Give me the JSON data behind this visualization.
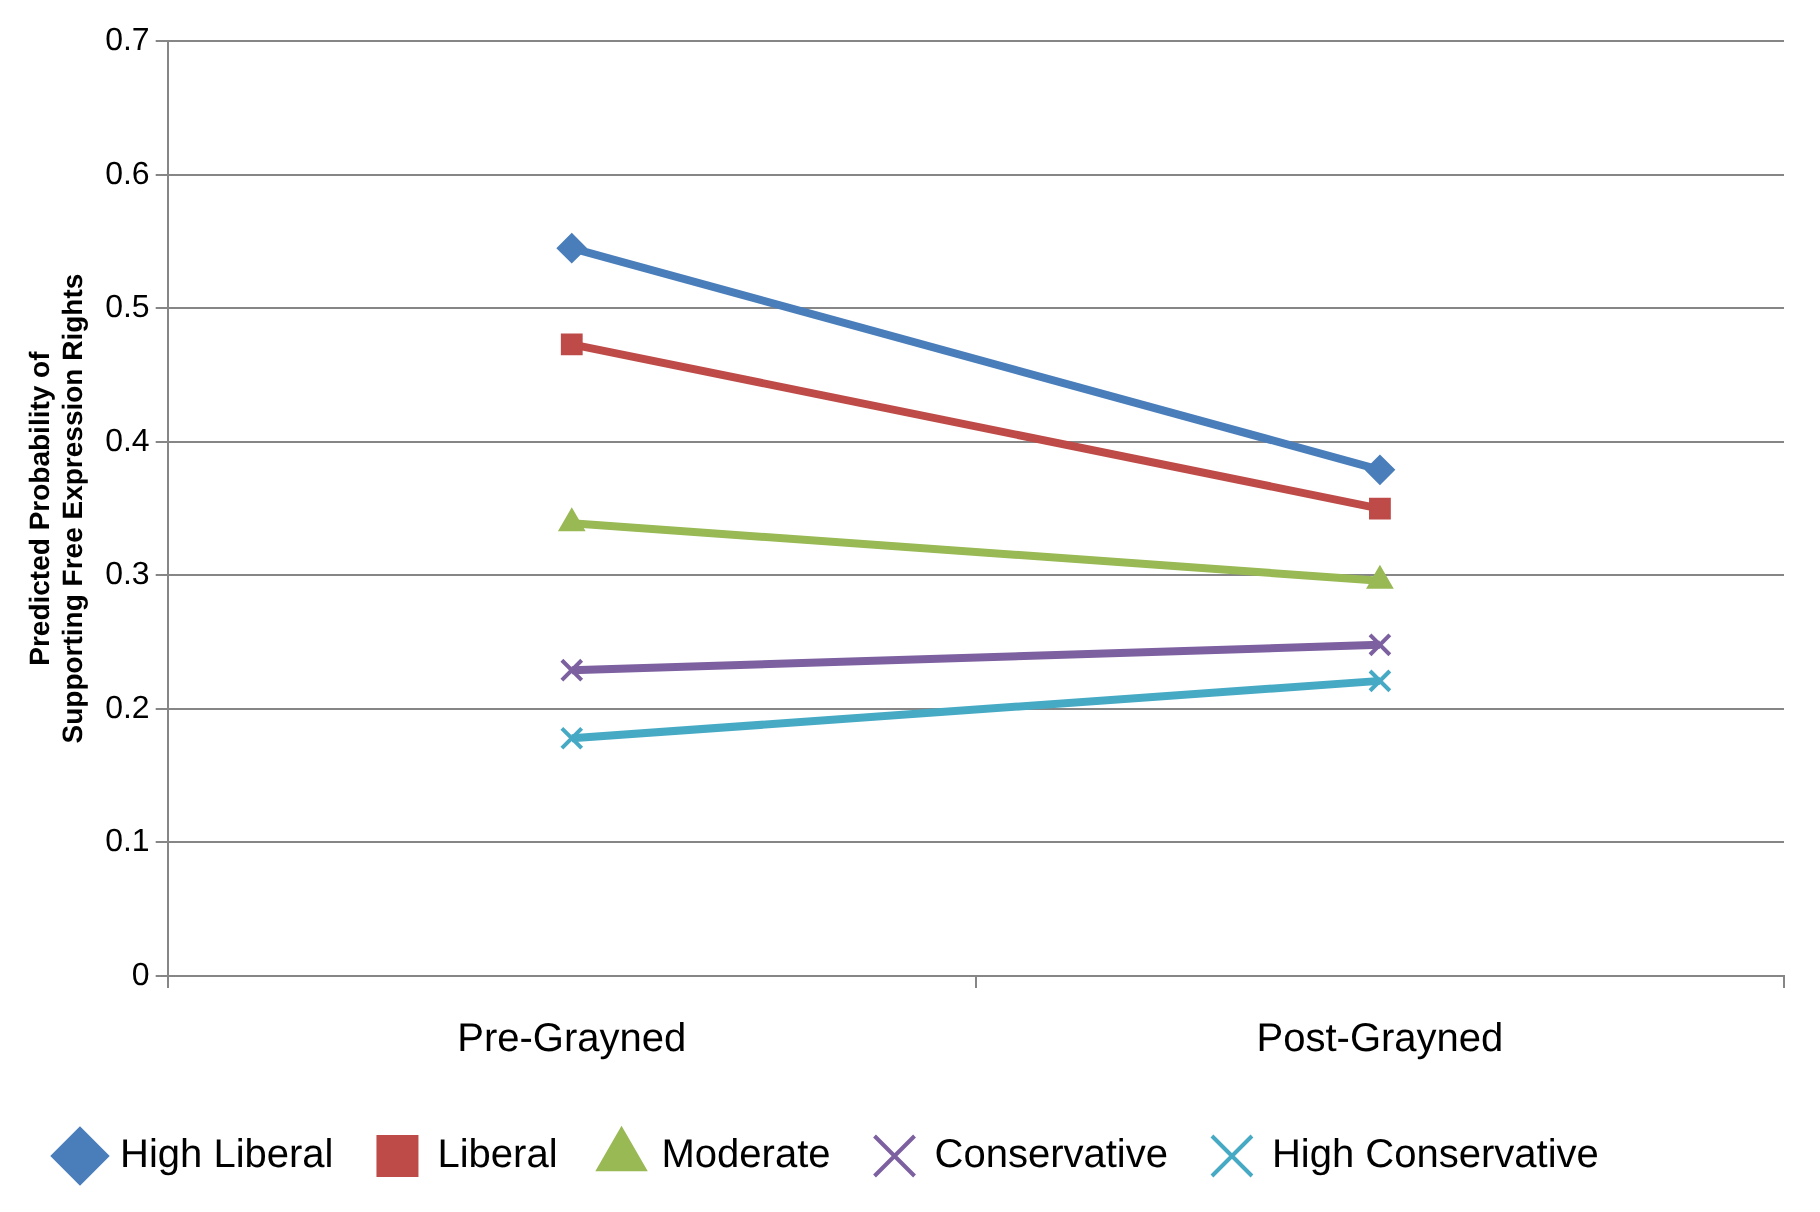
{
  "chart_data": {
    "type": "line",
    "ylabel": "Predicted Probability of Supporting Free Expression Rights",
    "categories": [
      "Pre-Grayned",
      "Post-Grayned"
    ],
    "ylim": [
      0,
      0.7
    ],
    "yticks": [
      0,
      0.1,
      0.2,
      0.3,
      0.4,
      0.5,
      0.6,
      0.7
    ],
    "grid": "y",
    "legend": "bottom",
    "line_style": "solid",
    "series": [
      {
        "name": "High Liberal",
        "color": "#4a7ebb",
        "marker": "diamond",
        "values": [
          0.545,
          0.379
        ]
      },
      {
        "name": "Liberal",
        "color": "#be4b48",
        "marker": "square",
        "values": [
          0.473,
          0.35
        ]
      },
      {
        "name": "Moderate",
        "color": "#98b954",
        "marker": "triangle",
        "values": [
          0.339,
          0.296
        ]
      },
      {
        "name": "Conservative",
        "color": "#7d60a0",
        "marker": "cross",
        "values": [
          0.229,
          0.248
        ]
      },
      {
        "name": "High Conservative",
        "color": "#46aac5",
        "marker": "cross",
        "values": [
          0.178,
          0.221
        ]
      }
    ]
  }
}
